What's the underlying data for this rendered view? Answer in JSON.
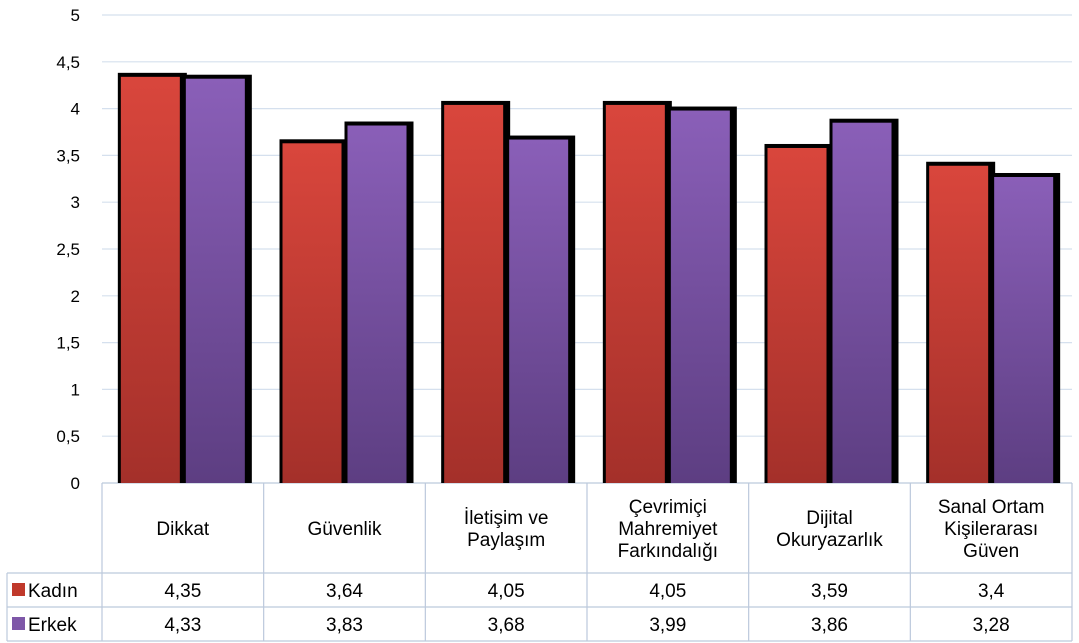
{
  "chart_data": {
    "type": "bar",
    "categories": [
      [
        "Dikkat"
      ],
      [
        "Güvenlik"
      ],
      [
        "İletişim ve",
        "Paylaşım"
      ],
      [
        "Çevrimiçi",
        "Mahremiyet",
        "Farkındalığı"
      ],
      [
        "Dijital",
        "Okuryazarlık"
      ],
      [
        "Sanal Ortam",
        "Kişilerarası",
        "Güven"
      ]
    ],
    "series": [
      {
        "name": "Kadın",
        "color": "#c0392b",
        "values": [
          4.35,
          3.64,
          4.05,
          4.05,
          3.59,
          3.4
        ],
        "labels": [
          "4,35",
          "3,64",
          "4,05",
          "4,05",
          "3,59",
          "3,4"
        ]
      },
      {
        "name": "Erkek",
        "color": "#7e57a8",
        "values": [
          4.33,
          3.83,
          3.68,
          3.99,
          3.86,
          3.28
        ],
        "labels": [
          "4,33",
          "3,83",
          "3,68",
          "3,99",
          "3,86",
          "3,28"
        ]
      }
    ],
    "ylim": [
      0,
      5
    ],
    "yticks": [
      0,
      0.5,
      1,
      1.5,
      2,
      2.5,
      3,
      3.5,
      4,
      4.5,
      5
    ],
    "ytick_labels": [
      "0",
      "0,5",
      "1",
      "1,5",
      "2",
      "2,5",
      "3",
      "3,5",
      "4",
      "4,5",
      "5"
    ],
    "grid": true,
    "legend": "data-table"
  }
}
